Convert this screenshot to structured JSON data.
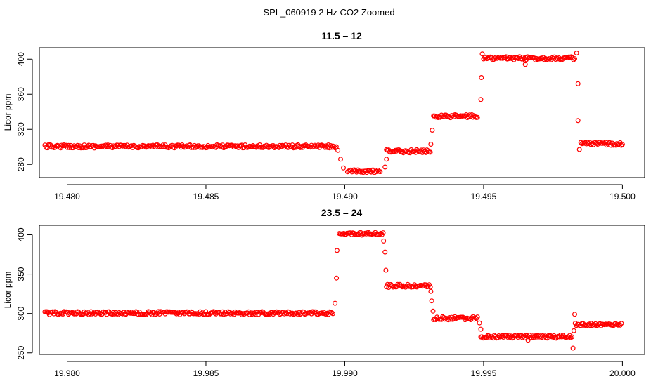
{
  "figure_title": "SPL_060919  2 Hz CO2 Zoomed",
  "marker_color": "#ff0000",
  "chart_data": [
    {
      "type": "scatter",
      "title": "11.5 – 12",
      "xlabel": "",
      "ylabel": "Licor ppm",
      "xlim": [
        19.479,
        19.5008
      ],
      "ylim": [
        265,
        413
      ],
      "xticks": [
        19.48,
        19.485,
        19.49,
        19.495,
        19.5
      ],
      "xtick_labels": [
        "19.480",
        "19.485",
        "19.490",
        "19.495",
        "19.500"
      ],
      "yticks": [
        280,
        320,
        360,
        400
      ],
      "ytick_labels": [
        "280",
        "320",
        "360",
        "400"
      ],
      "grid": false,
      "series": [
        {
          "segments": [
            {
              "x_start": 19.4792,
              "x_end": 19.4897,
              "y": 300.5
            },
            {
              "x_start": 19.4901,
              "x_end": 19.4913,
              "y": 272
            },
            {
              "x_start": 19.4915,
              "x_end": 19.4931,
              "y": 295
            },
            {
              "x_start": 19.4932,
              "x_end": 19.4948,
              "y": 335
            },
            {
              "x_start": 19.495,
              "x_end": 19.4983,
              "y": 401
            },
            {
              "x_start": 19.4985,
              "x_end": 19.5,
              "y": 303.5
            }
          ],
          "outliers": [
            {
              "x": 19.48975,
              "y": 296
            },
            {
              "x": 19.48985,
              "y": 286
            },
            {
              "x": 19.48995,
              "y": 276
            },
            {
              "x": 19.49145,
              "y": 277
            },
            {
              "x": 19.4915,
              "y": 286
            },
            {
              "x": 19.4931,
              "y": 303
            },
            {
              "x": 19.49315,
              "y": 319
            },
            {
              "x": 19.4949,
              "y": 354
            },
            {
              "x": 19.49492,
              "y": 379
            },
            {
              "x": 19.49495,
              "y": 406
            },
            {
              "x": 19.4965,
              "y": 394
            },
            {
              "x": 19.4965,
              "y": 398
            },
            {
              "x": 19.49835,
              "y": 407
            },
            {
              "x": 19.4984,
              "y": 372
            },
            {
              "x": 19.4984,
              "y": 330
            },
            {
              "x": 19.49845,
              "y": 297
            }
          ]
        }
      ]
    },
    {
      "type": "scatter",
      "title": "23.5 – 24",
      "xlabel": "",
      "ylabel": "Licor ppm",
      "xlim": [
        19.979,
        20.0008
      ],
      "ylim": [
        248,
        412
      ],
      "xticks": [
        19.98,
        19.985,
        19.99,
        19.995,
        20.0
      ],
      "xtick_labels": [
        "19.980",
        "19.985",
        "19.990",
        "19.995",
        "20.000"
      ],
      "yticks": [
        250,
        300,
        350,
        400
      ],
      "ytick_labels": [
        "250",
        "300",
        "350",
        "400"
      ],
      "grid": false,
      "series": [
        {
          "segments": [
            {
              "x_start": 19.9792,
              "x_end": 19.9896,
              "y": 300.5
            },
            {
              "x_start": 19.9898,
              "x_end": 19.9914,
              "y": 401
            },
            {
              "x_start": 19.9915,
              "x_end": 19.9931,
              "y": 335
            },
            {
              "x_start": 19.9932,
              "x_end": 19.9948,
              "y": 294
            },
            {
              "x_start": 19.9949,
              "x_end": 19.9982,
              "y": 270.5
            },
            {
              "x_start": 19.9983,
              "x_end": 20.0,
              "y": 286
            }
          ],
          "outliers": [
            {
              "x": 19.98965,
              "y": 313
            },
            {
              "x": 19.9897,
              "y": 345
            },
            {
              "x": 19.98972,
              "y": 380
            },
            {
              "x": 19.9914,
              "y": 392
            },
            {
              "x": 19.99145,
              "y": 378
            },
            {
              "x": 19.99148,
              "y": 355
            },
            {
              "x": 19.9931,
              "y": 328
            },
            {
              "x": 19.99313,
              "y": 316
            },
            {
              "x": 19.99318,
              "y": 303
            },
            {
              "x": 19.99485,
              "y": 288
            },
            {
              "x": 19.9949,
              "y": 280
            },
            {
              "x": 19.9966,
              "y": 266
            },
            {
              "x": 19.99822,
              "y": 256
            },
            {
              "x": 19.99825,
              "y": 278
            },
            {
              "x": 19.99828,
              "y": 299
            }
          ]
        }
      ]
    }
  ]
}
